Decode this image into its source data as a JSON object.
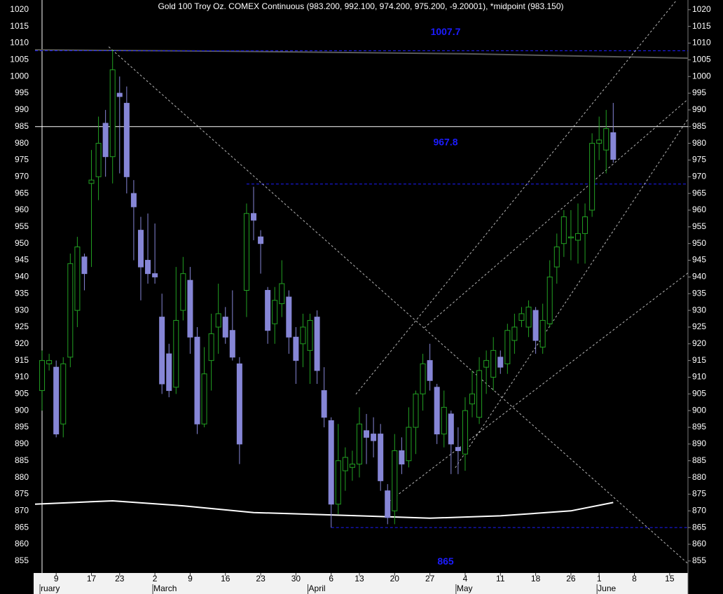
{
  "chart_data": {
    "type": "candlestick",
    "title": "Gold 100 Troy Oz. COMEX Continuous (983.200, 992.100, 974.200, 975.200, -9.20001), *midpoint (983.150)",
    "categories": [
      null,
      null,
      "9",
      null,
      null,
      null,
      null,
      "17",
      null,
      null,
      null,
      "23",
      null,
      null,
      null,
      null,
      "2",
      null,
      null,
      null,
      null,
      "9",
      null,
      null,
      null,
      null,
      "16",
      null,
      null,
      null,
      null,
      "23",
      null,
      null,
      null,
      null,
      "30",
      null,
      null,
      null,
      null,
      "6",
      null,
      null,
      null,
      "13",
      null,
      null,
      null,
      null,
      "20",
      null,
      null,
      null,
      null,
      "27",
      null,
      null,
      null,
      null,
      "4",
      null,
      null,
      null,
      null,
      "11",
      null,
      null,
      null,
      null,
      "18",
      null,
      null,
      null,
      null,
      "26",
      null,
      null,
      null,
      "1",
      null,
      null,
      null,
      null,
      "8",
      null,
      null,
      null,
      null,
      "15",
      null,
      null
    ],
    "months": [
      "ruary",
      null,
      null,
      null,
      null,
      null,
      null,
      null,
      null,
      null,
      null,
      null,
      null,
      null,
      null,
      null,
      "March",
      null,
      null,
      null,
      null,
      null,
      null,
      null,
      null,
      null,
      null,
      null,
      null,
      null,
      null,
      null,
      null,
      null,
      null,
      null,
      null,
      null,
      "April",
      null,
      null,
      null,
      null,
      null,
      null,
      null,
      null,
      null,
      null,
      null,
      null,
      null,
      null,
      null,
      null,
      null,
      null,
      null,
      null,
      "May",
      null,
      null,
      null,
      null,
      null,
      null,
      null,
      null,
      null,
      null,
      null,
      null,
      null,
      null,
      null,
      null,
      null,
      null,
      null,
      "June",
      null,
      null,
      null,
      null,
      null,
      null,
      null,
      null,
      null,
      null,
      null,
      null
    ],
    "open": [
      906,
      914,
      913,
      896,
      916,
      930,
      946,
      968,
      970,
      986,
      976,
      995,
      992,
      965,
      954,
      945,
      941,
      928,
      917,
      907,
      930,
      939,
      922,
      896,
      915,
      925,
      928,
      924,
      914,
      936,
      959,
      952,
      936,
      926,
      932,
      934,
      922,
      920,
      918,
      928,
      906,
      897,
      872,
      882,
      883,
      884,
      894,
      893,
      893,
      876,
      870,
      888,
      885,
      895,
      905,
      915,
      907,
      893,
      899,
      889,
      887,
      902,
      898,
      913,
      910,
      916,
      914,
      921,
      927,
      925,
      930,
      919,
      926,
      943,
      950,
      952,
      951,
      953,
      960,
      980,
      978,
      983.2,
      null,
      null,
      null,
      null,
      null,
      null,
      null,
      null,
      null,
      null
    ],
    "high": [
      918,
      917,
      915,
      916,
      947,
      952,
      947,
      978,
      988,
      990,
      1008,
      1000,
      997,
      969,
      958,
      959,
      956,
      935,
      920,
      943,
      946,
      943,
      925,
      919,
      929,
      938,
      931,
      936,
      916,
      962,
      967,
      954,
      937,
      937,
      945,
      936,
      925,
      929,
      929,
      930,
      913,
      898,
      896,
      889,
      888,
      901,
      899,
      898,
      896,
      878,
      893,
      892,
      901,
      906,
      917,
      920,
      908,
      906,
      900,
      895,
      904,
      912,
      916,
      918,
      922,
      918,
      926,
      929,
      931,
      933,
      931,
      932,
      945,
      953,
      960,
      960,
      962,
      962,
      983,
      988,
      990,
      992.1,
      null,
      null,
      null,
      null,
      null,
      null,
      null,
      null,
      null,
      null
    ],
    "low": [
      900,
      912,
      892,
      892,
      913,
      925,
      936,
      943,
      963,
      970,
      968,
      971,
      965,
      945,
      933,
      938,
      938,
      905,
      904,
      905,
      927,
      917,
      893,
      895,
      906,
      917,
      920,
      915,
      884,
      928,
      951,
      941,
      920,
      920,
      928,
      917,
      908,
      913,
      908,
      908,
      895,
      865,
      869,
      876,
      879,
      880,
      884,
      886,
      876,
      866,
      866,
      881,
      883,
      887,
      900,
      906,
      890,
      889,
      881,
      881,
      882,
      898,
      896,
      905,
      906,
      911,
      911,
      917,
      925,
      922,
      917,
      917,
      925,
      938,
      946,
      945,
      944,
      944,
      958,
      975,
      971,
      974.2,
      null,
      null,
      null,
      null,
      null,
      null,
      null,
      null,
      null,
      null
    ],
    "close": [
      915,
      915,
      893,
      914,
      944,
      949,
      941,
      969,
      980,
      976,
      1002,
      994,
      970,
      961,
      943,
      941,
      940,
      908,
      906,
      927,
      941,
      922,
      896,
      911,
      923,
      929,
      922,
      916,
      890,
      959,
      957,
      950,
      924,
      933,
      938,
      922,
      915,
      925,
      927,
      912,
      898,
      872,
      885,
      886,
      884,
      896,
      892,
      891,
      879,
      868,
      888,
      884,
      895,
      905,
      914,
      909,
      893,
      901,
      890,
      888,
      900,
      905,
      912,
      915,
      918,
      913,
      924,
      925,
      929,
      931,
      921,
      927,
      940,
      949,
      958,
      952,
      953,
      958,
      980,
      981,
      984.4,
      975.2,
      null,
      null,
      null,
      null,
      null,
      null,
      null,
      null,
      null,
      null
    ],
    "up_color": "#22a022",
    "down_color": "#8686d6",
    "xlim": [
      -1,
      91.6
    ],
    "ylim": [
      851.4,
      1022.9
    ],
    "yticks": [
      855,
      860,
      865,
      870,
      875,
      880,
      885,
      890,
      895,
      900,
      905,
      910,
      915,
      920,
      925,
      930,
      935,
      940,
      945,
      950,
      955,
      960,
      965,
      970,
      975,
      980,
      985,
      990,
      995,
      1000,
      1005,
      1010,
      1015,
      1020
    ],
    "hline": 985,
    "levels": [
      {
        "value": 1007.7,
        "from": -1
      },
      {
        "value": 967.8,
        "from": 29
      },
      {
        "value": 865,
        "from": 41
      }
    ],
    "level_color": "#1c1cff",
    "trendlines": [
      [
        [
          9.45,
          1008.9
        ],
        [
          91.6,
          854.2
        ]
      ],
      [
        [
          44.5,
          904.9
        ],
        [
          90.0,
          1022.9
        ]
      ],
      [
        [
          54.2,
          924.8
        ],
        [
          91.6,
          993.2
        ]
      ],
      [
        [
          49.2,
          872.8
        ],
        [
          91.6,
          941.2
        ]
      ],
      [
        [
          58.6,
          882.9
        ],
        [
          91.6,
          987.3
        ]
      ]
    ],
    "moving_averages": [
      {
        "color": "#ffffff",
        "points": [
          [
            -1,
            872.0
          ],
          [
            10,
            873.0
          ],
          [
            20,
            871.5
          ],
          [
            30,
            869.5
          ],
          [
            45,
            868.5
          ],
          [
            55,
            867.8
          ],
          [
            65,
            868.5
          ],
          [
            75,
            870.0
          ],
          [
            81,
            872.5
          ]
        ]
      },
      {
        "color": "#5a5a5a",
        "points": [
          [
            -1,
            1008.0
          ],
          [
            30,
            1007.5
          ],
          [
            60,
            1006.8
          ],
          [
            91.6,
            1005.5
          ]
        ]
      }
    ]
  }
}
